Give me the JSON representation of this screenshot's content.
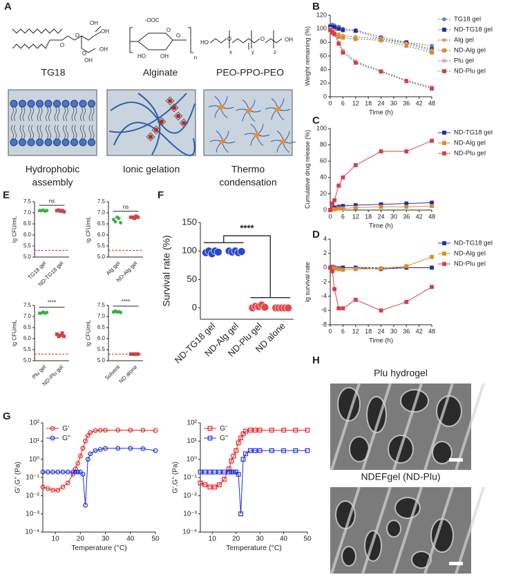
{
  "panel_a": {
    "letter": "A",
    "structures": [
      {
        "name": "TG18",
        "atoms": [
          "O",
          "O",
          "O",
          "OH",
          "OH",
          "OH",
          "OH"
        ]
      },
      {
        "name": "Alginate",
        "atoms": [
          "-OOC",
          "O",
          "HO",
          "OH",
          "O",
          "n"
        ]
      },
      {
        "name": "PEO-PPO-PEO",
        "atoms": [
          "HO",
          "O",
          "O",
          "OH",
          "x",
          "y",
          "z"
        ]
      }
    ],
    "mechanisms": [
      {
        "lines": [
          "Hydrophobic",
          "assembly"
        ]
      },
      {
        "lines": [
          "Ionic gelation"
        ]
      },
      {
        "lines": [
          "Thermo",
          "condensation"
        ]
      }
    ]
  },
  "chart_data": [
    {
      "panel": "B",
      "type": "line",
      "x": [
        0,
        1,
        2,
        4,
        6,
        12,
        24,
        36,
        48
      ],
      "xlim": [
        0,
        48
      ],
      "xticks": [
        0,
        6,
        12,
        18,
        24,
        30,
        36,
        42,
        48
      ],
      "ylim": [
        0,
        120
      ],
      "yticks": [
        0,
        20,
        40,
        60,
        80,
        100,
        120
      ],
      "xlabel": "Time (h)",
      "ylabel": "Weight remaining (%)",
      "linestyle": "dotted",
      "legend": "right",
      "series": [
        {
          "name": "TG18 gel",
          "color": "#5b7fd6",
          "marker": "circle",
          "values": [
            105,
            106,
            105,
            103,
            100,
            98,
            88,
            80,
            75
          ]
        },
        {
          "name": "ND-TG18 gel",
          "color": "#1f2f9e",
          "marker": "square",
          "values": [
            103,
            103,
            102,
            100,
            98,
            97,
            85,
            80,
            70
          ]
        },
        {
          "name": "Alg gel",
          "color": "#d9a35a",
          "marker": "circle",
          "values": [
            100,
            98,
            97,
            92,
            90,
            88,
            85,
            78,
            68
          ]
        },
        {
          "name": "ND-Alg gel",
          "color": "#e08a2a",
          "marker": "square",
          "values": [
            98,
            94,
            92,
            88,
            87,
            85,
            83,
            75,
            65
          ]
        },
        {
          "name": "Plu gel",
          "color": "#e9a0b8",
          "marker": "circle",
          "values": [
            100,
            97,
            95,
            80,
            68,
            52,
            38,
            24,
            14
          ]
        },
        {
          "name": "ND-Plu gel",
          "color": "#d0424a",
          "marker": "square",
          "values": [
            98,
            95,
            92,
            78,
            65,
            50,
            37,
            23,
            12
          ]
        }
      ]
    },
    {
      "panel": "C",
      "type": "line",
      "x": [
        0,
        1,
        2,
        4,
        6,
        12,
        24,
        36,
        48
      ],
      "xlim": [
        0,
        48
      ],
      "xticks": [
        0,
        6,
        12,
        18,
        24,
        30,
        36,
        42,
        48
      ],
      "ylim": [
        0,
        100
      ],
      "yticks": [
        0,
        20,
        40,
        60,
        80,
        100
      ],
      "xlabel": "Time (h)",
      "ylabel": "Cumulative drug release (%)",
      "linestyle": "solid",
      "legend": "right",
      "series": [
        {
          "name": "ND-TG18 gel",
          "color": "#1f2f9e",
          "marker": "square",
          "values": [
            0,
            2,
            3,
            4,
            5,
            6,
            7,
            8,
            9
          ]
        },
        {
          "name": "ND-Alg gel",
          "color": "#e08a2a",
          "marker": "square",
          "values": [
            0,
            1,
            1,
            2,
            2,
            3,
            4,
            4,
            5
          ]
        },
        {
          "name": "ND-Plu gel",
          "color": "#d0424a",
          "marker": "square",
          "values": [
            0,
            8,
            12,
            30,
            40,
            55,
            72,
            72,
            85
          ]
        }
      ]
    },
    {
      "panel": "D",
      "type": "line",
      "x": [
        0,
        1,
        2,
        4,
        6,
        12,
        24,
        36,
        48
      ],
      "xlim": [
        0,
        48
      ],
      "xticks": [
        0,
        6,
        12,
        18,
        24,
        30,
        36,
        42,
        48
      ],
      "ylim": [
        -8,
        4
      ],
      "yticks": [
        4,
        2,
        0,
        -2,
        -4,
        -6,
        -8
      ],
      "xlabel": "Time (h)",
      "ylabel": "lg survival rate",
      "linestyle": "solid",
      "legend": "right",
      "zero_line": true,
      "series": [
        {
          "name": "ND-TG18 gel",
          "color": "#1f2f9e",
          "marker": "square",
          "values": [
            0,
            0.1,
            0,
            -0.1,
            0,
            0,
            -0.2,
            0,
            0
          ]
        },
        {
          "name": "ND-Alg gel",
          "color": "#e08a2a",
          "marker": "square",
          "values": [
            0,
            0,
            -0.1,
            -0.2,
            -0.3,
            -0.2,
            -0.1,
            0.2,
            1.5
          ]
        },
        {
          "name": "ND-Plu gel",
          "color": "#d0424a",
          "marker": "square",
          "values": [
            0,
            -0.5,
            -3,
            -5.7,
            -5.7,
            -4.5,
            -6,
            -4.8,
            -2.7
          ]
        }
      ]
    },
    {
      "panel": "E",
      "type": "strip",
      "ylabel": "lg CFU/mL",
      "categories": [
        "TG18 gel",
        "ND-TG18 gel"
      ],
      "values": [
        [
          7.1,
          7.1,
          7.12,
          7.08,
          7.1
        ],
        [
          7.1,
          7.12,
          7.08,
          7.1,
          7.05
        ]
      ],
      "colors": [
        "#3fae49",
        "#d0424a"
      ],
      "ylim": [
        5,
        7.5
      ],
      "yticks": [
        {
          "value": 5,
          "label": "5.0"
        },
        5.5,
        {
          "value": 6,
          "label": "6.0"
        },
        6.5,
        {
          "value": 7,
          "label": "7.0"
        },
        7.5
      ],
      "threshold": 5.3,
      "annotation": "ns"
    },
    {
      "type": "strip",
      "ylabel": "lg CFU/mL",
      "categories": [
        "Alg gel",
        "ND-Alg gel"
      ],
      "values": [
        [
          6.7,
          6.6,
          6.8,
          6.75,
          6.55
        ],
        [
          6.8,
          6.8,
          6.75,
          6.85,
          6.8
        ]
      ],
      "colors": [
        "#3fae49",
        "#d0424a"
      ],
      "ylim": [
        5,
        7.5
      ],
      "yticks": [
        {
          "value": 5,
          "label": "5.0"
        },
        5.5,
        {
          "value": 6,
          "label": "6.0"
        },
        6.5,
        {
          "value": 7,
          "label": "7.0"
        },
        7.5
      ],
      "threshold": 5.3,
      "annotation": "ns"
    },
    {
      "type": "strip",
      "ylabel": "lg CFU/mL",
      "categories": [
        "Plu gel",
        "ND-Plu gel"
      ],
      "values": [
        [
          7.15,
          7.15,
          7.2,
          7.15,
          7.18
        ],
        [
          6.2,
          6.1,
          6.15,
          6.25,
          6.1
        ]
      ],
      "colors": [
        "#3fae49",
        "#d0424a"
      ],
      "ylim": [
        5,
        7.5
      ],
      "yticks": [
        {
          "value": 5,
          "label": "5.0"
        },
        5.5,
        {
          "value": 6,
          "label": "6.0"
        },
        6.5,
        {
          "value": 7,
          "label": "7.0"
        },
        7.5
      ],
      "threshold": 5.3,
      "annotation": "****"
    },
    {
      "type": "strip",
      "ylabel": "lg CFU/mL",
      "categories": [
        "Solvent",
        "ND alone"
      ],
      "values": [
        [
          7.2,
          7.25,
          7.2,
          7.22,
          7.18
        ],
        [
          5.3,
          5.3,
          5.3,
          5.3,
          5.3
        ]
      ],
      "colors": [
        "#3fae49",
        "#d0424a"
      ],
      "ylim": [
        5,
        7.5
      ],
      "yticks": [
        {
          "value": 5,
          "label": "5.0"
        },
        5.5,
        {
          "value": 6,
          "label": "6.0"
        },
        6.5,
        {
          "value": 7,
          "label": "7.0"
        },
        7.5
      ],
      "threshold": 5.3,
      "annotation": "****"
    },
    {
      "panel": "F",
      "type": "strip",
      "ylabel": "Survival rate (%)",
      "categories": [
        "ND-TG18 gel",
        "ND-Alg gel",
        "ND-Plu gel",
        "ND alone"
      ],
      "values": [
        [
          97,
          100,
          95,
          100,
          98
        ],
        [
          100,
          98,
          100,
          97,
          99
        ],
        [
          0,
          3,
          2,
          5,
          1
        ],
        [
          0,
          0,
          0,
          0,
          0
        ]
      ],
      "colors": [
        "#2b47c9",
        "#2b47c9",
        "#e04848",
        "#e04848"
      ],
      "ylim": [
        -20,
        150
      ],
      "yticks": [
        0,
        50,
        100,
        150
      ],
      "annotation": "****"
    },
    {
      "panel": "G",
      "type": "line",
      "log_y": true,
      "x": [
        5,
        7,
        9,
        11,
        13,
        15,
        17,
        18,
        19,
        20,
        21,
        22,
        23,
        24,
        26,
        28,
        30,
        35,
        40,
        45,
        50
      ],
      "xlim": [
        5,
        50
      ],
      "xticks": [
        10,
        20,
        30,
        40,
        50
      ],
      "ylim": [
        0.0001,
        100
      ],
      "yticks": [
        {
          "value": 0.0001,
          "label": "10⁻⁴"
        },
        {
          "value": 0.001,
          "label": "10⁻³"
        },
        {
          "value": 0.01,
          "label": "10⁻²"
        },
        {
          "value": 0.1,
          "label": "10⁻¹"
        },
        {
          "value": 1,
          "label": "10⁰"
        },
        {
          "value": 10,
          "label": "10¹"
        },
        {
          "value": 100,
          "label": "10²"
        }
      ],
      "xlabel": "Temperature (°C)",
      "ylabel": "G',G'' (Pa)",
      "linestyle": "solid",
      "legend": "upper left",
      "series": [
        {
          "name": "G'",
          "color": "#e8201e",
          "marker": "open-circle",
          "values": [
            0.03,
            0.025,
            0.02,
            0.02,
            0.03,
            0.05,
            0.15,
            0.3,
            0.6,
            1.5,
            4,
            10,
            20,
            30,
            38,
            40,
            40,
            40,
            40,
            40,
            38
          ]
        },
        {
          "name": "G''",
          "color": "#1c2fd6",
          "marker": "open-circle",
          "values": [
            0.2,
            0.2,
            0.2,
            0.2,
            0.2,
            0.2,
            0.2,
            0.2,
            0.2,
            0.2,
            0.15,
            0.003,
            1,
            2,
            3,
            3.5,
            4,
            4,
            4,
            3.8,
            3
          ]
        }
      ]
    },
    {
      "type": "line",
      "log_y": true,
      "x": [
        5,
        7,
        9,
        11,
        13,
        15,
        17,
        18,
        19,
        20,
        21,
        22,
        23,
        24,
        26,
        28,
        30,
        35,
        40,
        45,
        50
      ],
      "xlim": [
        5,
        50
      ],
      "xticks": [
        10,
        20,
        30,
        40,
        50
      ],
      "ylim": [
        0.0001,
        100
      ],
      "yticks": [
        {
          "value": 0.0001,
          "label": "10⁻⁴"
        },
        {
          "value": 0.001,
          "label": "10⁻³"
        },
        {
          "value": 0.01,
          "label": "10⁻²"
        },
        {
          "value": 0.1,
          "label": "10⁻¹"
        },
        {
          "value": 1,
          "label": "10⁰"
        },
        {
          "value": 10,
          "label": "10¹"
        },
        {
          "value": 100,
          "label": "10²"
        }
      ],
      "xlabel": "Temperature (°C)",
      "ylabel": "G',G'' (Pa)",
      "linestyle": "solid",
      "legend": "upper left",
      "series": [
        {
          "name": "G'",
          "color": "#e8201e",
          "marker": "open-square",
          "values": [
            0.05,
            0.04,
            0.03,
            0.03,
            0.04,
            0.08,
            0.3,
            0.8,
            1.5,
            3,
            8,
            15,
            25,
            35,
            40,
            40,
            40,
            40,
            40,
            40,
            40
          ]
        },
        {
          "name": "G''",
          "color": "#1c2fd6",
          "marker": "open-square",
          "values": [
            0.2,
            0.2,
            0.2,
            0.2,
            0.2,
            0.2,
            0.2,
            0.2,
            0.2,
            0.2,
            0.15,
            0.001,
            1,
            2,
            3,
            3,
            3,
            3,
            3,
            3,
            3
          ]
        }
      ]
    }
  ],
  "panel_h": {
    "letter": "H",
    "images": [
      {
        "title": "Plu hydrogel"
      },
      {
        "title": "NDEFgel (ND-Plu)"
      }
    ]
  }
}
